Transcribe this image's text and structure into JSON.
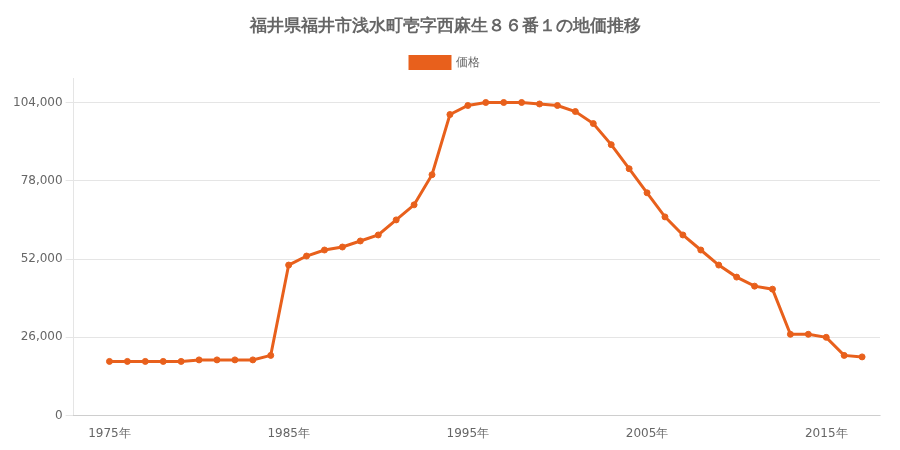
{
  "chart_data": {
    "type": "line",
    "title": "福井県福井市浅水町壱字西麻生８６番１の地価推移",
    "x": [
      1975,
      1976,
      1977,
      1978,
      1979,
      1980,
      1981,
      1982,
      1983,
      1984,
      1985,
      1986,
      1987,
      1988,
      1989,
      1990,
      1991,
      1992,
      1993,
      1994,
      1995,
      1996,
      1997,
      1998,
      1999,
      2000,
      2001,
      2002,
      2003,
      2004,
      2005,
      2006,
      2007,
      2008,
      2009,
      2010,
      2011,
      2012,
      2013,
      2014,
      2015,
      2016,
      2017
    ],
    "series": [
      {
        "name": "価格",
        "color": "#e8601c",
        "marker": "circle",
        "line_style": "solid",
        "values": [
          18000,
          18000,
          18000,
          18000,
          18000,
          18500,
          18500,
          18500,
          18500,
          20000,
          50000,
          53000,
          55000,
          56000,
          58000,
          60000,
          65000,
          70000,
          80000,
          100000,
          103000,
          104000,
          104000,
          104000,
          103500,
          103000,
          101000,
          97000,
          90000,
          82000,
          74000,
          66000,
          60000,
          55000,
          50000,
          46000,
          43000,
          42000,
          27000,
          27000,
          26000,
          20000,
          19500
        ]
      }
    ],
    "xlim": [
      1973,
      2018
    ],
    "xticks": [
      {
        "value": 1975,
        "label": "1975年"
      },
      {
        "value": 1985,
        "label": "1985年"
      },
      {
        "value": 1995,
        "label": "1995年"
      },
      {
        "value": 2005,
        "label": "2005年"
      },
      {
        "value": 2015,
        "label": "2015年"
      }
    ],
    "ylim": [
      0,
      112000
    ],
    "yticks": [
      0,
      {
        "value": 26000,
        "label": "26,000"
      },
      {
        "value": 52000,
        "label": "52,000"
      },
      {
        "value": 78000,
        "label": "78,000"
      },
      {
        "value": 104000,
        "label": "104,000"
      }
    ],
    "grid": "y",
    "legend": "top"
  }
}
